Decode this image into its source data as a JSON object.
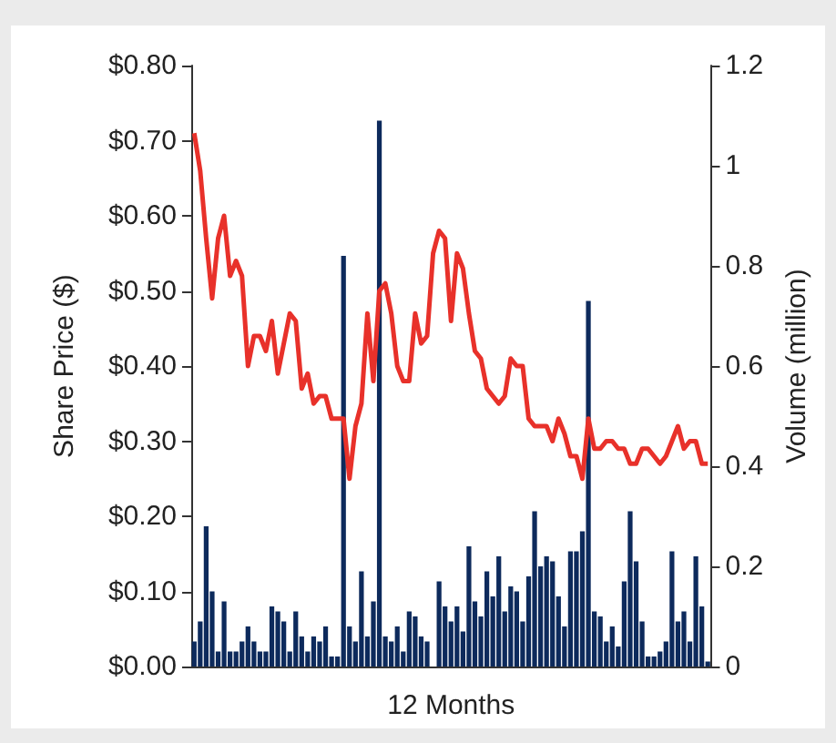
{
  "chart_data": {
    "type": "bar",
    "xlabel": "12 Months",
    "ylabel": "Share Price ($)",
    "y2label": "Volume (million)",
    "categories": [
      null,
      null,
      null,
      null,
      null,
      null,
      null,
      null,
      null,
      null,
      null,
      null,
      null,
      null,
      null,
      null,
      null,
      null,
      null,
      null,
      null,
      null,
      null,
      null,
      null,
      null,
      null,
      null,
      null,
      null,
      null,
      null,
      null,
      null,
      null,
      null,
      null,
      null,
      null,
      null,
      null,
      null,
      null,
      null,
      null,
      null,
      null,
      null,
      null,
      null,
      null,
      null,
      null,
      null,
      null,
      null,
      null,
      null,
      null,
      null,
      null,
      null,
      null,
      null,
      null,
      null,
      null,
      null,
      null,
      null,
      null,
      null,
      null,
      null,
      null,
      null,
      null,
      null,
      null,
      null,
      null,
      null,
      null,
      null,
      null,
      null,
      null
    ],
    "series": [
      {
        "axis": "y2",
        "color": "#0d2a5c",
        "values": [
          0.05,
          0.09,
          0.28,
          0.15,
          0.03,
          0.13,
          0.03,
          0.03,
          0.05,
          0.08,
          0.05,
          0.03,
          0.03,
          0.12,
          0.11,
          0.09,
          0.03,
          0.11,
          0.06,
          0.03,
          0.06,
          0.05,
          0.08,
          0.02,
          0.02,
          0.82,
          0.08,
          0.05,
          0.19,
          0.06,
          0.13,
          1.09,
          0.06,
          0.05,
          0.08,
          0.03,
          0.11,
          0.1,
          0.06,
          0.05,
          0.0,
          0.17,
          0.12,
          0.09,
          0.12,
          0.07,
          0.24,
          0.13,
          0.1,
          0.19,
          0.14,
          0.22,
          0.11,
          0.16,
          0.15,
          0.09,
          0.18,
          0.31,
          0.2,
          0.22,
          0.21,
          0.14,
          0.08,
          0.23,
          0.23,
          0.27,
          0.73,
          0.11,
          0.1,
          0.05,
          0.08,
          0.04,
          0.17,
          0.31,
          0.21,
          0.09,
          0.02,
          0.02,
          0.03,
          0.05,
          0.23,
          0.09,
          0.11,
          0.05,
          0.22,
          0.12,
          0.01
        ]
      },
      {
        "type": "line",
        "color": "#e8312a",
        "values": [
          0.71,
          0.66,
          0.57,
          0.49,
          0.57,
          0.6,
          0.52,
          0.54,
          0.52,
          0.4,
          0.44,
          0.44,
          0.42,
          0.46,
          0.39,
          0.43,
          0.47,
          0.46,
          0.37,
          0.39,
          0.35,
          0.36,
          0.36,
          0.33,
          0.33,
          0.33,
          0.25,
          0.32,
          0.35,
          0.47,
          0.38,
          0.5,
          0.51,
          0.47,
          0.4,
          0.38,
          0.38,
          0.47,
          0.43,
          0.44,
          0.55,
          0.58,
          0.57,
          0.46,
          0.55,
          0.53,
          0.47,
          0.42,
          0.41,
          0.37,
          0.36,
          0.35,
          0.36,
          0.41,
          0.4,
          0.4,
          0.33,
          0.32,
          0.32,
          0.32,
          0.3,
          0.33,
          0.31,
          0.28,
          0.28,
          0.25,
          0.33,
          0.29,
          0.29,
          0.3,
          0.3,
          0.29,
          0.29,
          0.27,
          0.27,
          0.29,
          0.29,
          0.28,
          0.27,
          0.28,
          0.3,
          0.32,
          0.29,
          0.3,
          0.3,
          0.27,
          0.27
        ]
      }
    ],
    "ylim": [
      0,
      0.8
    ],
    "yticks": [
      {
        "value": 0,
        "label": "$0.00"
      },
      {
        "value": 0.1,
        "label": "$0.10"
      },
      {
        "value": 0.2,
        "label": "$0.20"
      },
      {
        "value": 0.3,
        "label": "$0.30"
      },
      {
        "value": 0.4,
        "label": "$0.40"
      },
      {
        "value": 0.5,
        "label": "$0.50"
      },
      {
        "value": 0.6,
        "label": "$0.60"
      },
      {
        "value": 0.7,
        "label": "$0.70"
      },
      {
        "value": 0.8,
        "label": "$0.80"
      }
    ],
    "y2lim": [
      0,
      1.2
    ],
    "y2ticks": [
      0,
      0.2,
      0.4,
      0.6,
      0.8,
      1,
      1.2
    ],
    "grid": false,
    "marker": "none",
    "line_style": "solid"
  }
}
